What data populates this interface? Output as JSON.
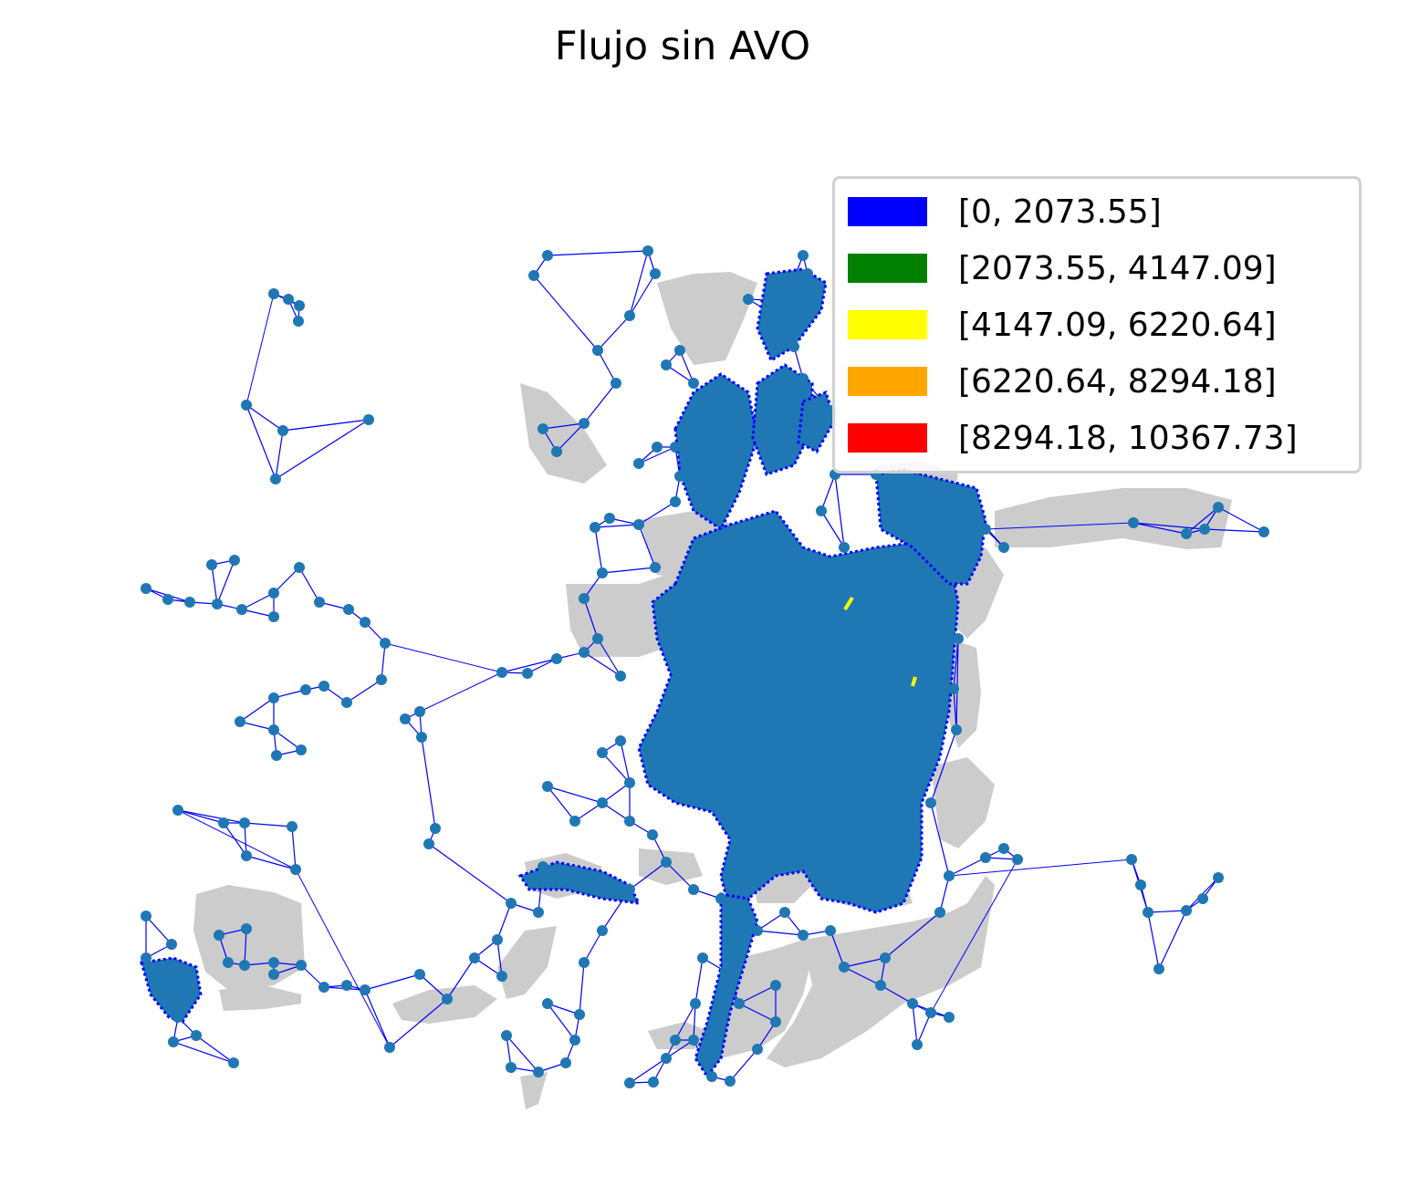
{
  "title": "Flujo sin AVO",
  "colors": {
    "background_zone": "#cccccc",
    "edge": "#0000ff",
    "node": "#1f77b4",
    "highlight_edge": "#ffff00"
  },
  "legend": {
    "placement": "top-right",
    "items": [
      {
        "label": "[0, 2073.55]",
        "color": "#0000ff"
      },
      {
        "label": "[2073.55, 4147.09]",
        "color": "#008000"
      },
      {
        "label": "[4147.09, 6220.64]",
        "color": "#ffff00"
      },
      {
        "label": "[6220.64, 8294.18]",
        "color": "#ffa500"
      },
      {
        "label": "[8294.18, 10367.73]",
        "color": "#ff0000"
      }
    ]
  }
}
